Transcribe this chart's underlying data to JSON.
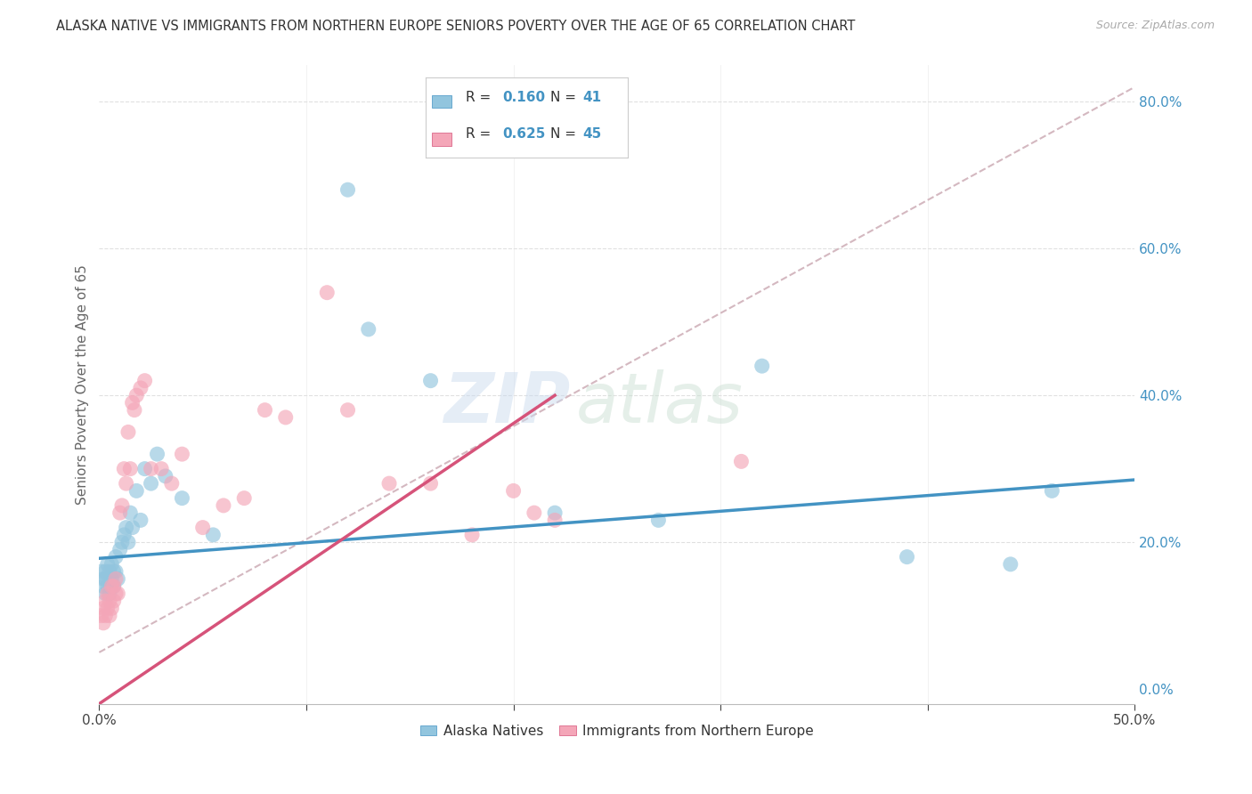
{
  "title": "ALASKA NATIVE VS IMMIGRANTS FROM NORTHERN EUROPE SENIORS POVERTY OVER THE AGE OF 65 CORRELATION CHART",
  "source": "Source: ZipAtlas.com",
  "ylabel": "Seniors Poverty Over the Age of 65",
  "xlim": [
    0.0,
    0.5
  ],
  "ylim": [
    -0.02,
    0.85
  ],
  "legend_labels": [
    "Alaska Natives",
    "Immigrants from Northern Europe"
  ],
  "R_blue": 0.16,
  "N_blue": 41,
  "R_pink": 0.625,
  "N_pink": 45,
  "color_blue": "#92c5de",
  "color_pink": "#f4a6b8",
  "color_blue_line": "#4393c3",
  "color_pink_line": "#d6537a",
  "color_dashed_line": "#d4b8c0",
  "watermark_zip": "ZIP",
  "watermark_atlas": "atlas",
  "blue_scatter_x": [
    0.001,
    0.002,
    0.002,
    0.003,
    0.003,
    0.003,
    0.004,
    0.004,
    0.005,
    0.005,
    0.006,
    0.006,
    0.007,
    0.007,
    0.008,
    0.008,
    0.009,
    0.01,
    0.011,
    0.012,
    0.013,
    0.014,
    0.015,
    0.016,
    0.018,
    0.02,
    0.022,
    0.025,
    0.028,
    0.032,
    0.04,
    0.055,
    0.12,
    0.13,
    0.16,
    0.22,
    0.27,
    0.32,
    0.39,
    0.44,
    0.46
  ],
  "blue_scatter_y": [
    0.16,
    0.14,
    0.15,
    0.13,
    0.15,
    0.16,
    0.14,
    0.17,
    0.13,
    0.16,
    0.15,
    0.17,
    0.14,
    0.16,
    0.16,
    0.18,
    0.15,
    0.19,
    0.2,
    0.21,
    0.22,
    0.2,
    0.24,
    0.22,
    0.27,
    0.23,
    0.3,
    0.28,
    0.32,
    0.29,
    0.26,
    0.21,
    0.68,
    0.49,
    0.42,
    0.24,
    0.23,
    0.44,
    0.18,
    0.17,
    0.27
  ],
  "pink_scatter_x": [
    0.001,
    0.002,
    0.002,
    0.003,
    0.003,
    0.004,
    0.004,
    0.005,
    0.005,
    0.006,
    0.006,
    0.007,
    0.007,
    0.008,
    0.008,
    0.009,
    0.01,
    0.011,
    0.012,
    0.013,
    0.014,
    0.015,
    0.016,
    0.017,
    0.018,
    0.02,
    0.022,
    0.025,
    0.03,
    0.035,
    0.04,
    0.05,
    0.06,
    0.07,
    0.08,
    0.09,
    0.11,
    0.12,
    0.14,
    0.16,
    0.18,
    0.2,
    0.21,
    0.22,
    0.31
  ],
  "pink_scatter_y": [
    0.1,
    0.09,
    0.11,
    0.1,
    0.12,
    0.11,
    0.13,
    0.1,
    0.12,
    0.11,
    0.14,
    0.12,
    0.14,
    0.13,
    0.15,
    0.13,
    0.24,
    0.25,
    0.3,
    0.28,
    0.35,
    0.3,
    0.39,
    0.38,
    0.4,
    0.41,
    0.42,
    0.3,
    0.3,
    0.28,
    0.32,
    0.22,
    0.25,
    0.26,
    0.38,
    0.37,
    0.54,
    0.38,
    0.28,
    0.28,
    0.21,
    0.27,
    0.24,
    0.23,
    0.31
  ],
  "blue_line_x0": 0.0,
  "blue_line_y0": 0.178,
  "blue_line_x1": 0.5,
  "blue_line_y1": 0.285,
  "pink_line_x0": 0.0,
  "pink_line_y0": -0.02,
  "pink_line_x1": 0.22,
  "pink_line_y1": 0.4,
  "background_color": "#ffffff",
  "grid_color": "#e0e0e0"
}
